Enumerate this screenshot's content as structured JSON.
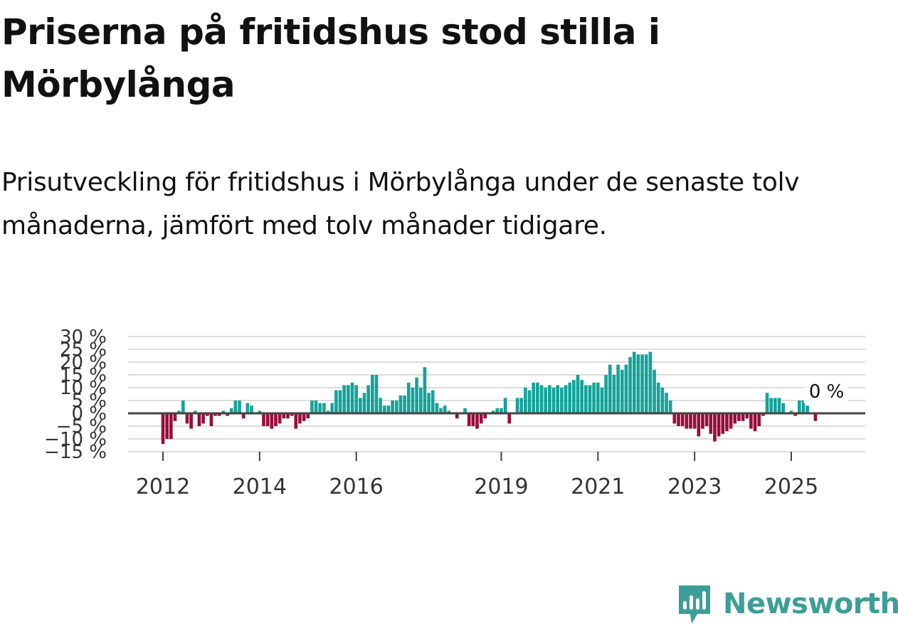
{
  "title": "Priserna på fritidshus stod stilla i Mörbylånga",
  "subtitle": "Prisutveckling för fritidshus i Mörbylånga under de senaste tolv månaderna, jämfört med tolv månader tidigare.",
  "brand": {
    "name": "Newsworthy",
    "color": "#3d9e97",
    "icon": "newsworthy-logo-icon"
  },
  "chart_data": {
    "type": "bar",
    "ylim": [
      -15,
      30
    ],
    "yticks": [
      30,
      25,
      20,
      15,
      10,
      5,
      0,
      -5,
      -10,
      -15
    ],
    "ytick_labels": [
      "30 %",
      "25 %",
      "20 %",
      "15 %",
      "10 %",
      "5 %",
      "0 %",
      "−5 %",
      "−10 %",
      "−15 %"
    ],
    "xticks": [
      "2012",
      "2014",
      "2016",
      "2019",
      "2021",
      "2023",
      "2025"
    ],
    "grid": true,
    "positive_color": "#14a39a",
    "negative_color": "#990d3a",
    "last_value_label": "0 %",
    "start": "2012-01",
    "values": [
      -12,
      -10,
      -10,
      -3,
      1,
      5,
      -4,
      -6,
      1,
      -5,
      -4,
      -1,
      -5,
      -1,
      -1,
      1,
      -1,
      2,
      5,
      5,
      -2,
      4,
      3,
      0,
      1,
      -5,
      -5,
      -6,
      -5,
      -4,
      -2,
      -2,
      -1,
      -6,
      -4,
      -3,
      -2,
      5,
      5,
      4,
      4,
      1,
      4,
      9,
      9,
      11,
      11,
      12,
      11,
      6,
      8,
      11,
      15,
      15,
      6,
      3,
      3,
      5,
      5,
      7,
      7,
      12,
      10,
      14,
      10,
      18,
      8,
      9,
      4,
      2,
      3,
      1,
      0,
      -2,
      0,
      2,
      -5,
      -5,
      -6,
      -4,
      -2,
      0,
      1,
      2,
      2,
      6,
      -4,
      0,
      6,
      6,
      10,
      9,
      12,
      12,
      11,
      10,
      11,
      10,
      11,
      10,
      11,
      12,
      13,
      15,
      13,
      11,
      11,
      12,
      12,
      10,
      15,
      19,
      15,
      19,
      17,
      19,
      22,
      24,
      23,
      23,
      23,
      24,
      17,
      12,
      10,
      8,
      5,
      -4,
      -5,
      -5,
      -6,
      -6,
      -6,
      -9,
      -6,
      -5,
      -8,
      -11,
      -9,
      -8,
      -7,
      -6,
      -4,
      -3,
      -3,
      -2,
      -6,
      -7,
      -5,
      -1,
      8,
      6,
      6,
      6,
      4,
      0,
      1,
      -1,
      5,
      5,
      3,
      0,
      -3,
      0
    ]
  }
}
